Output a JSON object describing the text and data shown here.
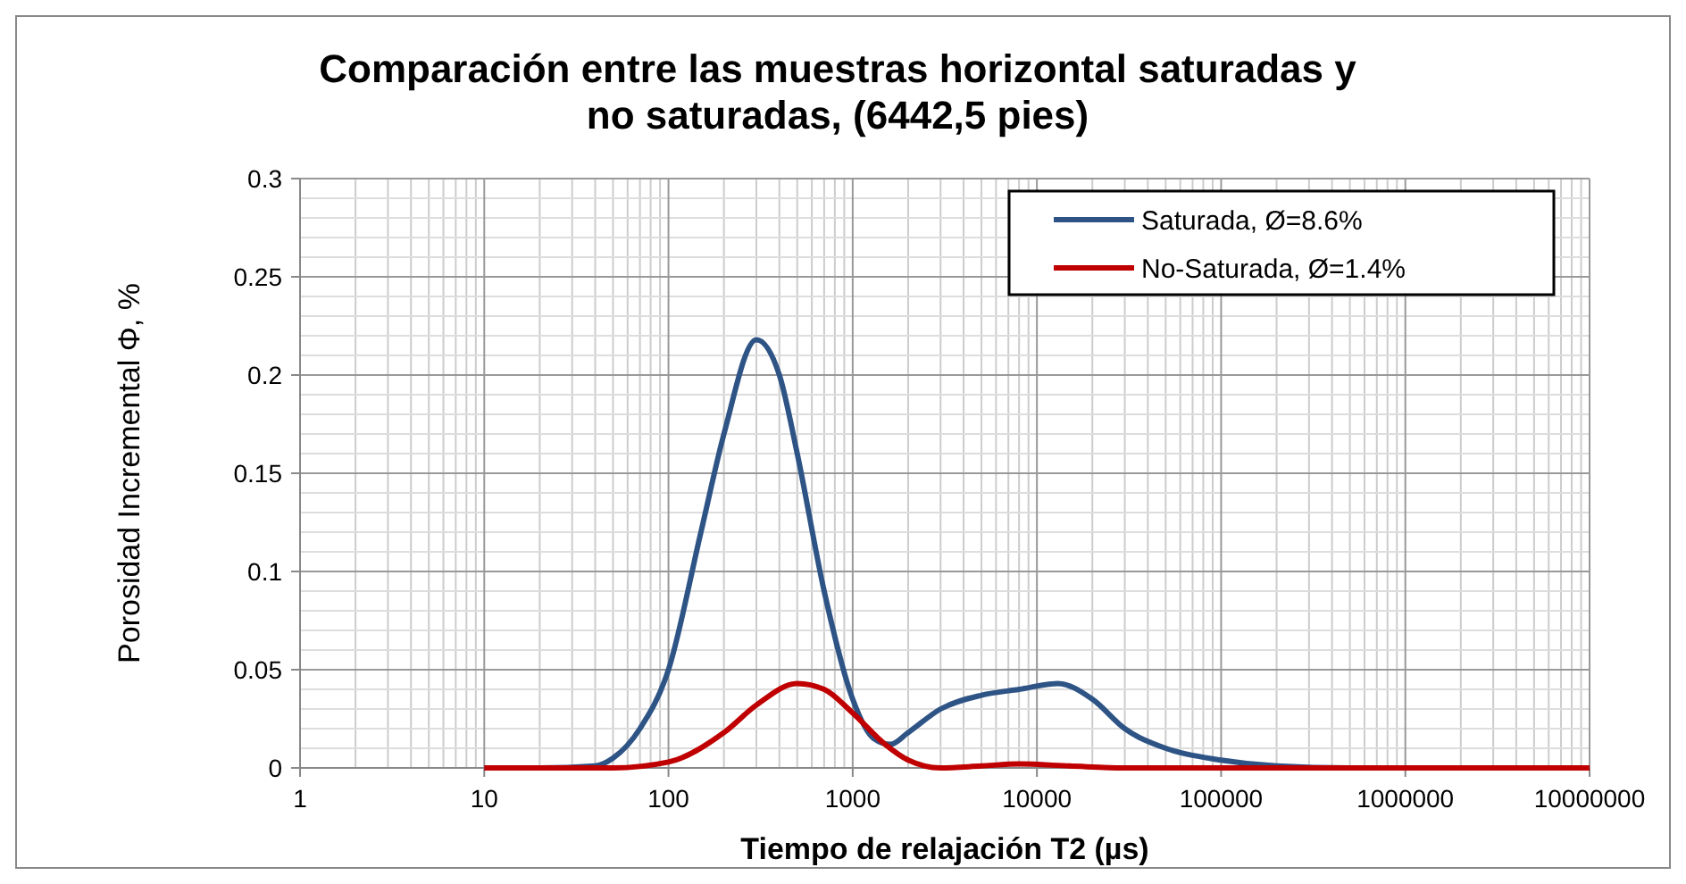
{
  "chart_data": {
    "type": "line",
    "title": "Comparación entre las muestras horizontal saturadas y no saturadas, (6442,5 pies)",
    "xlabel": "Tiempo de relajación T2 (µs)",
    "ylabel": "Porosidad Incremental Φ, %",
    "log": "x",
    "xlim": [
      1,
      10000000
    ],
    "xticks": [
      1,
      10,
      100,
      1000,
      10000,
      100000,
      1000000,
      10000000
    ],
    "ylim": [
      0,
      0.3
    ],
    "yticks": [
      0,
      0.05,
      0.1,
      0.15,
      0.2,
      0.25,
      0.3
    ],
    "grid": true,
    "legend": "top right",
    "series": [
      {
        "name": "Saturada, Ø=8.6%",
        "color": "#2e5486",
        "x": [
          10,
          20,
          40,
          50,
          70,
          100,
          150,
          200,
          300,
          400,
          500,
          700,
          1000,
          1300,
          1600,
          2000,
          3000,
          5000,
          8000,
          13000,
          20000,
          30000,
          50000,
          100000,
          200000,
          500000,
          1000000,
          10000000
        ],
        "values": [
          0,
          0,
          0.001,
          0.005,
          0.02,
          0.05,
          0.12,
          0.17,
          0.218,
          0.2,
          0.16,
          0.09,
          0.035,
          0.015,
          0.012,
          0.018,
          0.03,
          0.037,
          0.04,
          0.043,
          0.035,
          0.02,
          0.01,
          0.004,
          0.001,
          0,
          0,
          0
        ]
      },
      {
        "name": "No-Saturada, Ø=1.4%",
        "color": "#c00000",
        "x": [
          10,
          50,
          100,
          200,
          300,
          500,
          700,
          1000,
          1500,
          2000,
          3000,
          5000,
          8000,
          15000,
          30000,
          10000000
        ],
        "values": [
          0,
          0,
          0.003,
          0.018,
          0.032,
          0.043,
          0.04,
          0.028,
          0.012,
          0.004,
          0,
          0.001,
          0.002,
          0.001,
          0,
          0
        ]
      }
    ]
  }
}
